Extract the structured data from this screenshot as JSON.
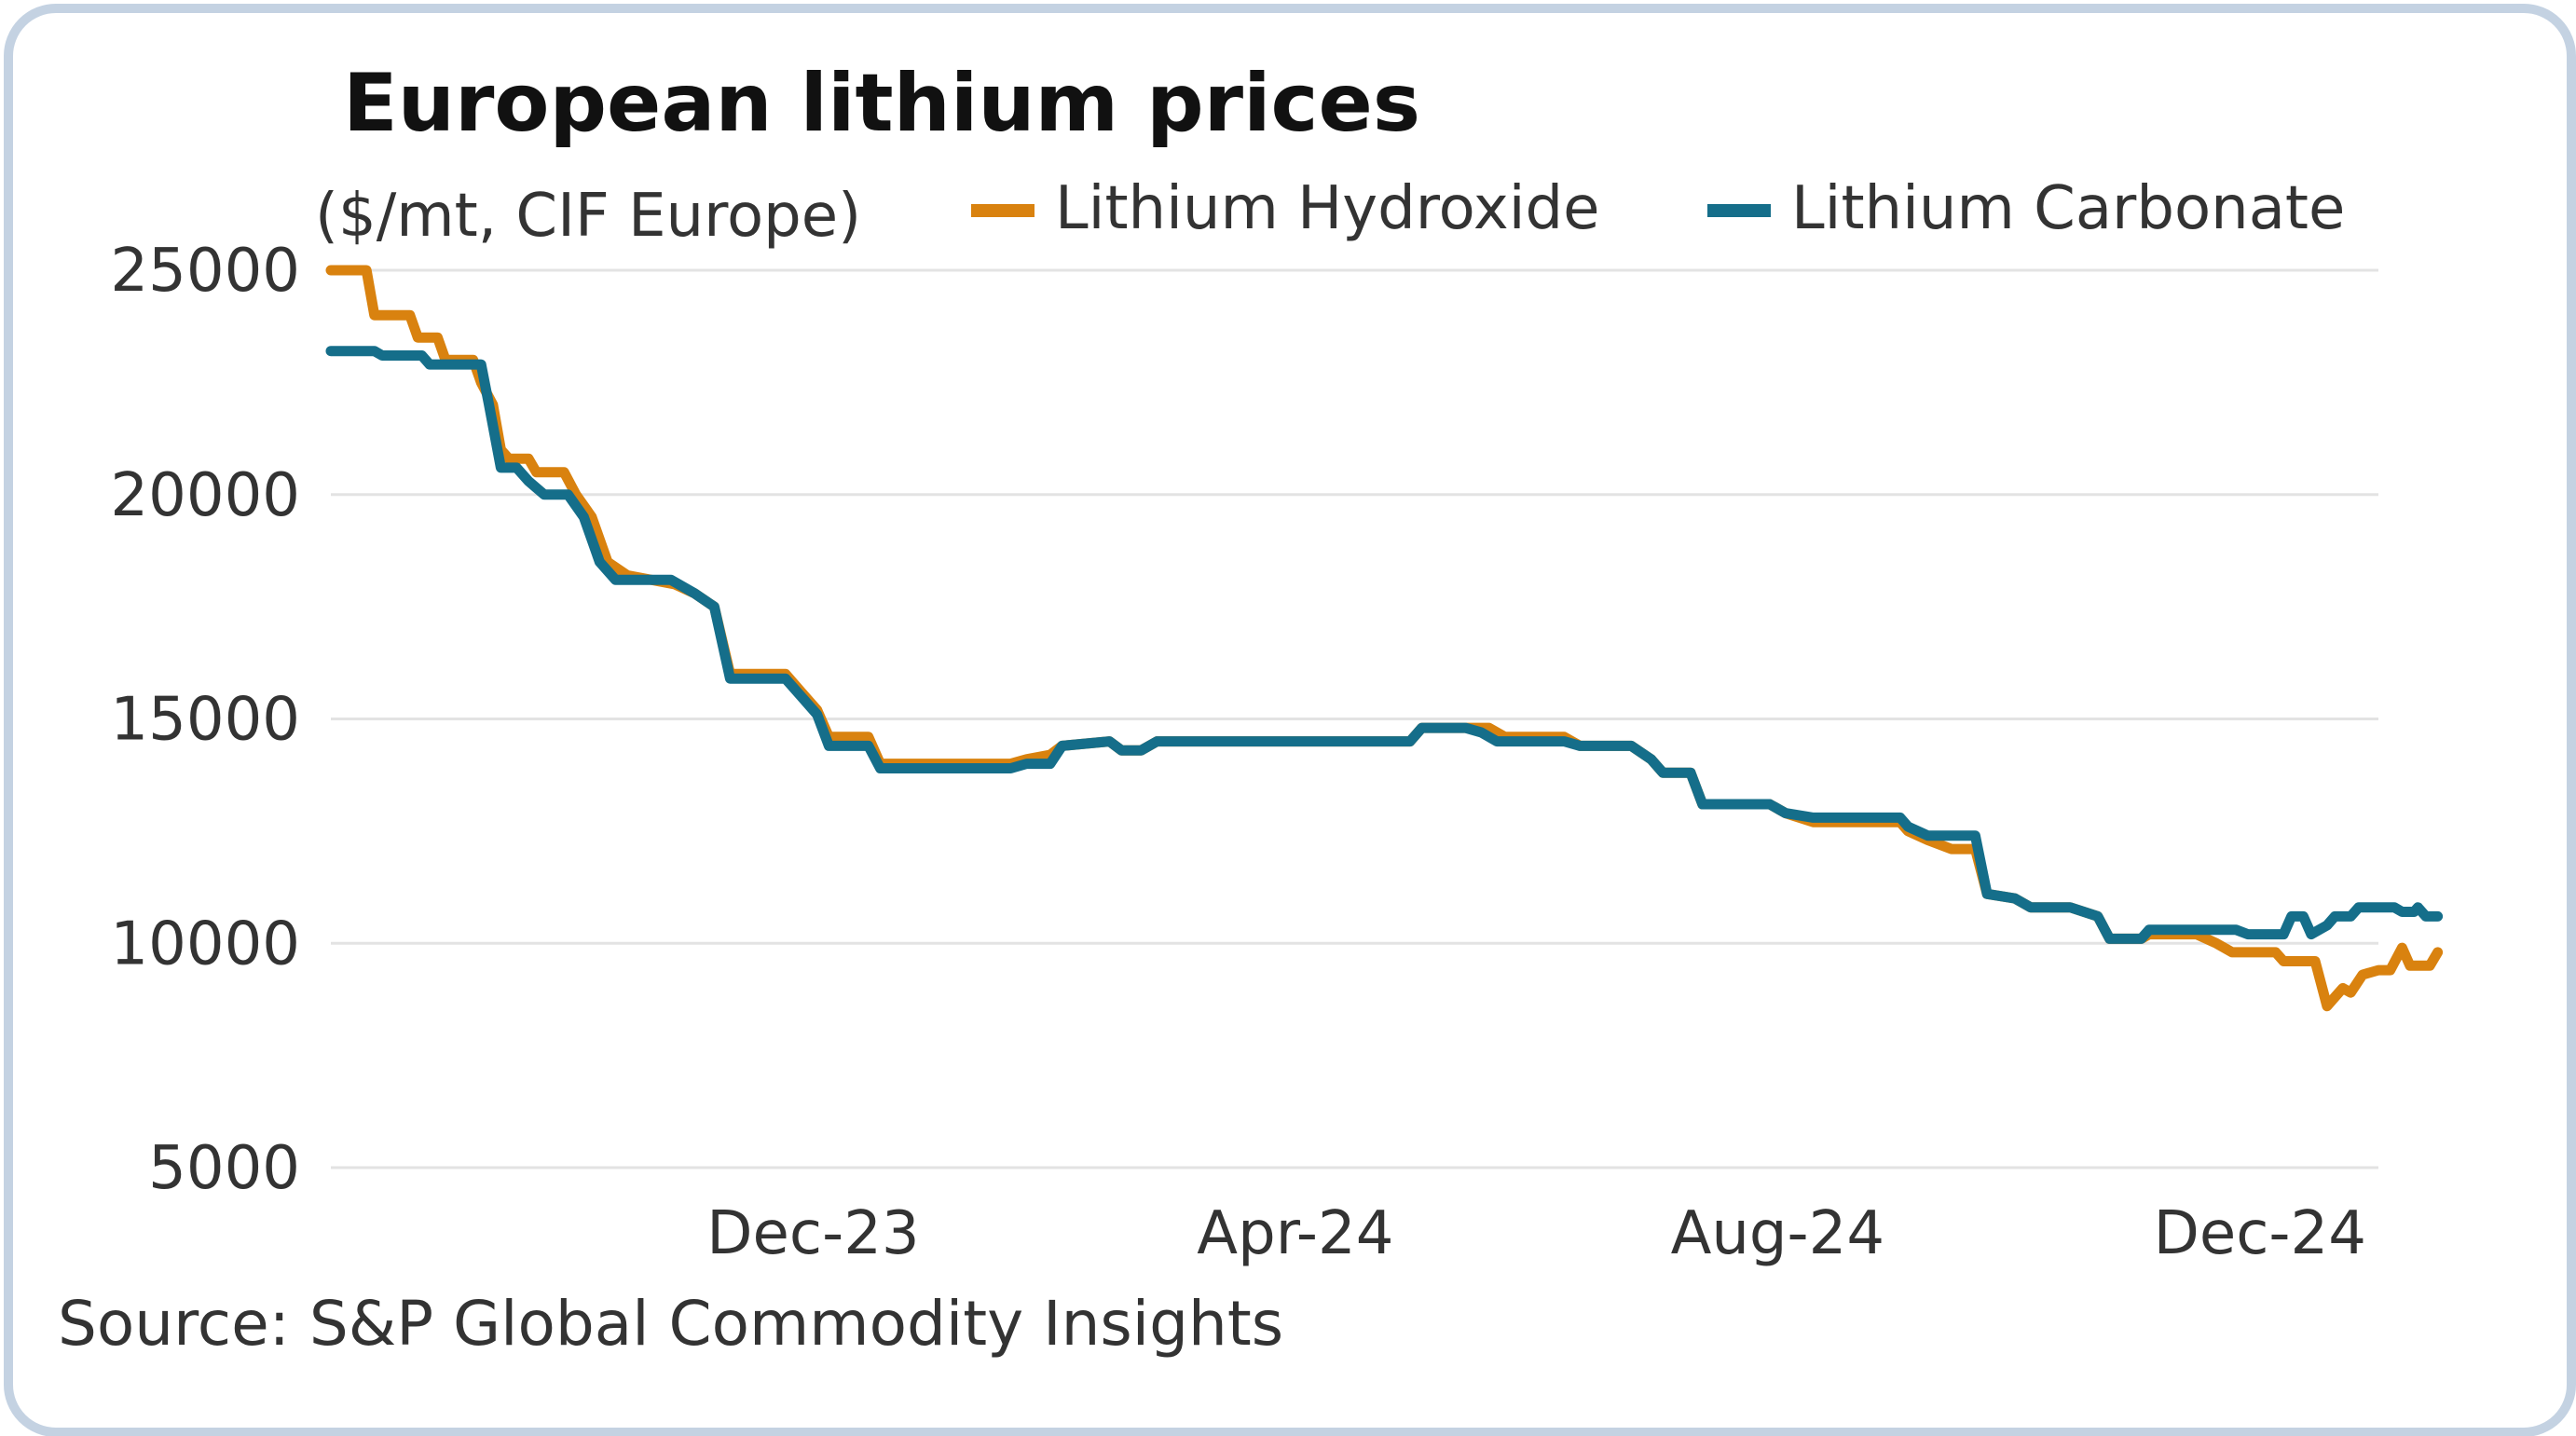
{
  "colors": {
    "hydroxide": "#d9820f",
    "carbonate": "#156e8a",
    "frame": "#c4d2e2"
  },
  "chart_data": {
    "type": "line",
    "title": "European lithium prices",
    "subtitle": "($/mt, CIF Europe)",
    "source": "Source: S&P Global Commodity Insights",
    "xlabel": "",
    "ylabel": "",
    "ylim": [
      5000,
      25000
    ],
    "yticks": [
      "25000",
      "20000",
      "15000",
      "10000",
      "5000"
    ],
    "yticks_values": [
      25000,
      20000,
      15000,
      10000,
      5000
    ],
    "xlim": [
      "2023-08-01",
      "2024-12-31"
    ],
    "xticks": [
      "Dec-23",
      "Apr-24",
      "Aug-24",
      "Dec-24"
    ],
    "xticks_values": [
      "2023-12-01",
      "2024-04-01",
      "2024-08-01",
      "2024-12-01"
    ],
    "grid": true,
    "legend": "top-right",
    "series": [
      {
        "name": "Lithium Hydroxide",
        "points": [
          [
            "2023-08-01",
            25000
          ],
          [
            "2023-08-10",
            25000
          ],
          [
            "2023-08-12",
            24000
          ],
          [
            "2023-08-21",
            24000
          ],
          [
            "2023-08-23",
            23500
          ],
          [
            "2023-08-28",
            23500
          ],
          [
            "2023-08-30",
            23000
          ],
          [
            "2023-09-06",
            23000
          ],
          [
            "2023-09-08",
            22500
          ],
          [
            "2023-09-11",
            22000
          ],
          [
            "2023-09-13",
            21000
          ],
          [
            "2023-09-15",
            20800
          ],
          [
            "2023-09-20",
            20800
          ],
          [
            "2023-09-22",
            20500
          ],
          [
            "2023-09-29",
            20500
          ],
          [
            "2023-10-02",
            20000
          ],
          [
            "2023-10-06",
            19500
          ],
          [
            "2023-10-10",
            18500
          ],
          [
            "2023-10-15",
            18200
          ],
          [
            "2023-10-27",
            18000
          ],
          [
            "2023-11-01",
            17800
          ],
          [
            "2023-11-06",
            17500
          ],
          [
            "2023-11-10",
            16000
          ],
          [
            "2023-11-24",
            16000
          ],
          [
            "2023-11-28",
            15600
          ],
          [
            "2023-12-02",
            15200
          ],
          [
            "2023-12-05",
            14600
          ],
          [
            "2023-12-15",
            14600
          ],
          [
            "2023-12-18",
            14000
          ],
          [
            "2024-01-20",
            14000
          ],
          [
            "2024-01-24",
            14100
          ],
          [
            "2024-01-30",
            14200
          ],
          [
            "2024-02-02",
            14400
          ],
          [
            "2024-02-14",
            14500
          ],
          [
            "2024-02-17",
            14300
          ],
          [
            "2024-02-22",
            14300
          ],
          [
            "2024-02-26",
            14500
          ],
          [
            "2024-04-30",
            14500
          ],
          [
            "2024-05-03",
            14800
          ],
          [
            "2024-05-20",
            14800
          ],
          [
            "2024-05-24",
            14600
          ],
          [
            "2024-06-08",
            14600
          ],
          [
            "2024-06-12",
            14400
          ],
          [
            "2024-06-25",
            14400
          ],
          [
            "2024-06-30",
            14100
          ],
          [
            "2024-07-03",
            13800
          ],
          [
            "2024-07-10",
            13800
          ],
          [
            "2024-07-13",
            13100
          ],
          [
            "2024-07-30",
            13100
          ],
          [
            "2024-08-03",
            12900
          ],
          [
            "2024-08-10",
            12700
          ],
          [
            "2024-09-01",
            12700
          ],
          [
            "2024-09-03",
            12500
          ],
          [
            "2024-09-08",
            12300
          ],
          [
            "2024-09-14",
            12100
          ],
          [
            "2024-09-20",
            12100
          ],
          [
            "2024-09-23",
            11100
          ],
          [
            "2024-09-30",
            11000
          ],
          [
            "2024-10-04",
            10800
          ],
          [
            "2024-10-14",
            10800
          ],
          [
            "2024-10-21",
            10600
          ],
          [
            "2024-10-24",
            10100
          ],
          [
            "2024-11-01",
            10100
          ],
          [
            "2024-11-03",
            10200
          ],
          [
            "2024-11-15",
            10200
          ],
          [
            "2024-11-20",
            10000
          ],
          [
            "2024-11-24",
            9800
          ],
          [
            "2024-12-05",
            9800
          ],
          [
            "2024-12-07",
            9600
          ],
          [
            "2024-12-15",
            9600
          ],
          [
            "2024-12-18",
            8600
          ],
          [
            "2024-12-20",
            8800
          ],
          [
            "2024-12-22",
            9000
          ],
          [
            "2024-12-24",
            8900
          ],
          [
            "2024-12-27",
            9300
          ],
          [
            "2024-12-31",
            9400
          ],
          [
            "2025-01-03",
            9400
          ],
          [
            "2025-01-06",
            9900
          ],
          [
            "2025-01-08",
            9500
          ],
          [
            "2025-01-13",
            9500
          ],
          [
            "2025-01-15",
            9800
          ]
        ]
      },
      {
        "name": "Lithium Carbonate",
        "points": [
          [
            "2023-08-01",
            23200
          ],
          [
            "2023-08-12",
            23200
          ],
          [
            "2023-08-14",
            23100
          ],
          [
            "2023-08-24",
            23100
          ],
          [
            "2023-08-26",
            22900
          ],
          [
            "2023-09-08",
            22900
          ],
          [
            "2023-09-10",
            22000
          ],
          [
            "2023-09-13",
            20600
          ],
          [
            "2023-09-17",
            20600
          ],
          [
            "2023-09-20",
            20300
          ],
          [
            "2023-09-24",
            20000
          ],
          [
            "2023-09-30",
            20000
          ],
          [
            "2023-10-04",
            19500
          ],
          [
            "2023-10-08",
            18500
          ],
          [
            "2023-10-12",
            18100
          ],
          [
            "2023-10-26",
            18100
          ],
          [
            "2023-11-01",
            17800
          ],
          [
            "2023-11-06",
            17500
          ],
          [
            "2023-11-10",
            15900
          ],
          [
            "2023-11-24",
            15900
          ],
          [
            "2023-11-28",
            15500
          ],
          [
            "2023-12-02",
            15100
          ],
          [
            "2023-12-05",
            14400
          ],
          [
            "2023-12-15",
            14400
          ],
          [
            "2023-12-18",
            13900
          ],
          [
            "2024-01-20",
            13900
          ],
          [
            "2024-01-24",
            14000
          ],
          [
            "2024-01-30",
            14000
          ],
          [
            "2024-02-02",
            14400
          ],
          [
            "2024-02-14",
            14500
          ],
          [
            "2024-02-17",
            14300
          ],
          [
            "2024-02-22",
            14300
          ],
          [
            "2024-02-26",
            14500
          ],
          [
            "2024-04-30",
            14500
          ],
          [
            "2024-05-03",
            14800
          ],
          [
            "2024-05-14",
            14800
          ],
          [
            "2024-05-18",
            14700
          ],
          [
            "2024-05-22",
            14500
          ],
          [
            "2024-06-08",
            14500
          ],
          [
            "2024-06-12",
            14400
          ],
          [
            "2024-06-25",
            14400
          ],
          [
            "2024-06-30",
            14100
          ],
          [
            "2024-07-03",
            13800
          ],
          [
            "2024-07-10",
            13800
          ],
          [
            "2024-07-13",
            13100
          ],
          [
            "2024-07-30",
            13100
          ],
          [
            "2024-08-03",
            12900
          ],
          [
            "2024-08-10",
            12800
          ],
          [
            "2024-09-01",
            12800
          ],
          [
            "2024-09-03",
            12600
          ],
          [
            "2024-09-08",
            12400
          ],
          [
            "2024-09-20",
            12400
          ],
          [
            "2024-09-23",
            11100
          ],
          [
            "2024-09-30",
            11000
          ],
          [
            "2024-10-04",
            10800
          ],
          [
            "2024-10-14",
            10800
          ],
          [
            "2024-10-21",
            10600
          ],
          [
            "2024-10-24",
            10100
          ],
          [
            "2024-11-01",
            10100
          ],
          [
            "2024-11-03",
            10300
          ],
          [
            "2024-11-25",
            10300
          ],
          [
            "2024-11-28",
            10200
          ],
          [
            "2024-12-07",
            10200
          ],
          [
            "2024-12-09",
            10600
          ],
          [
            "2024-12-12",
            10600
          ],
          [
            "2024-12-14",
            10200
          ],
          [
            "2024-12-18",
            10400
          ],
          [
            "2024-12-20",
            10600
          ],
          [
            "2024-12-24",
            10600
          ],
          [
            "2024-12-26",
            10800
          ],
          [
            "2025-01-04",
            10800
          ],
          [
            "2025-01-06",
            10700
          ],
          [
            "2025-01-09",
            10700
          ],
          [
            "2025-01-10",
            10800
          ],
          [
            "2025-01-12",
            10600
          ],
          [
            "2025-01-15",
            10600
          ]
        ]
      }
    ]
  }
}
